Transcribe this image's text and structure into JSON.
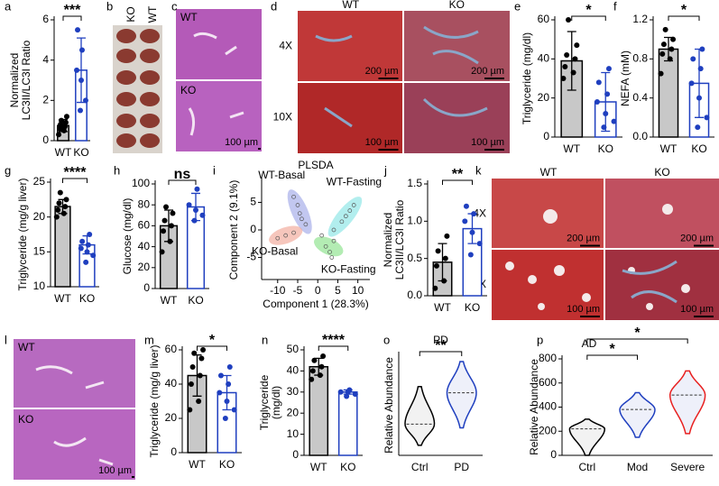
{
  "images": [
    {
      "panel": "b",
      "labels": [
        "KO",
        "WT"
      ]
    },
    {
      "panel": "c",
      "labels": [
        "WT",
        "KO"
      ],
      "scale": "100 µm"
    },
    {
      "panel": "d",
      "cols": [
        "WT",
        "KO"
      ],
      "rows": [
        "4X",
        "10X"
      ],
      "scales": [
        "200 µm",
        "200 µm",
        "100 µm",
        "100 µm"
      ]
    },
    {
      "panel": "k",
      "cols": [
        "WT",
        "KO"
      ],
      "rows": [
        "4X",
        "10X"
      ],
      "scales": [
        "200 µm",
        "200 µm",
        "100 µm",
        "100 µm"
      ]
    },
    {
      "panel": "l",
      "labels": [
        "WT",
        "KO"
      ],
      "scale": "100 µm"
    }
  ],
  "chart_data": [
    {
      "panel": "a",
      "type": "bar",
      "ylabel": [
        "Normalized",
        "LC3II/LC3I Ratio"
      ],
      "categories": [
        "WT",
        "KO"
      ],
      "values": [
        0.75,
        3.5
      ],
      "errors": [
        0.3,
        1.6
      ],
      "points": [
        [
          0.3,
          0.5,
          0.6,
          0.7,
          0.8,
          0.9,
          1.0,
          1.2,
          0.6
        ],
        [
          1.5,
          2.0,
          3.0,
          3.5,
          4.5,
          5.5
        ]
      ],
      "colors": [
        "#c8c8c8",
        "#ffffff"
      ],
      "edge_colors": [
        "#000000",
        "#1f3fbf"
      ],
      "ylim": [
        0,
        6
      ],
      "yticks": [
        0,
        2,
        4,
        6
      ],
      "significance": [
        "***"
      ]
    },
    {
      "panel": "e",
      "type": "bar",
      "ylabel": [
        "Triglyceride (mg/dl)"
      ],
      "categories": [
        "WT",
        "KO"
      ],
      "values": [
        39,
        18
      ],
      "errors": [
        15,
        15
      ],
      "points": [
        [
          30,
          33,
          36,
          40,
          42,
          47,
          60
        ],
        [
          5,
          8,
          12,
          18,
          22,
          28,
          35
        ]
      ],
      "colors": [
        "#c8c8c8",
        "#ffffff"
      ],
      "edge_colors": [
        "#000000",
        "#1f3fbf"
      ],
      "ylim": [
        0,
        60
      ],
      "yticks": [
        0,
        20,
        40,
        60
      ],
      "significance": [
        "*"
      ]
    },
    {
      "panel": "f",
      "type": "bar",
      "ylabel": [
        "NEFA (mM)"
      ],
      "categories": [
        "WT",
        "KO"
      ],
      "values": [
        0.9,
        0.55
      ],
      "errors": [
        0.12,
        0.35
      ],
      "points": [
        [
          0.65,
          0.8,
          0.85,
          0.9,
          0.95,
          1.0,
          1.1
        ],
        [
          0.1,
          0.2,
          0.4,
          0.55,
          0.7,
          0.8,
          0.9
        ]
      ],
      "colors": [
        "#c8c8c8",
        "#ffffff"
      ],
      "edge_colors": [
        "#000000",
        "#1f3fbf"
      ],
      "ylim": [
        0,
        1.2
      ],
      "yticks": [
        {
          "value": 0,
          "label": "0.0"
        },
        0.4,
        0.8,
        1.2
      ],
      "significance": [
        "*"
      ]
    },
    {
      "panel": "g",
      "type": "bar",
      "ylabel": [
        "Triglyceride (mg/g liver)"
      ],
      "categories": [
        "WT",
        "KO"
      ],
      "values": [
        21.5,
        16
      ],
      "errors": [
        1,
        1.3
      ],
      "points": [
        [
          20,
          20.5,
          21,
          21.5,
          22,
          22.5,
          23.5
        ],
        [
          13.5,
          14.5,
          15,
          15.5,
          16,
          16.5,
          17.5
        ]
      ],
      "colors": [
        "#c8c8c8",
        "#ffffff"
      ],
      "edge_colors": [
        "#000000",
        "#1f3fbf"
      ],
      "ylim": [
        10,
        25
      ],
      "yticks": [
        10,
        15,
        20,
        25
      ],
      "significance": [
        "****"
      ]
    },
    {
      "panel": "h",
      "type": "bar",
      "ylabel": [
        "Glucose (mg/dl)"
      ],
      "categories": [
        "WT",
        "KO"
      ],
      "values": [
        60,
        78
      ],
      "errors": [
        15,
        13
      ],
      "points": [
        [
          35,
          45,
          55,
          60,
          65,
          72,
          78
        ],
        [
          65,
          70,
          75,
          80,
          95
        ]
      ],
      "colors": [
        "#c8c8c8",
        "#ffffff"
      ],
      "edge_colors": [
        "#000000",
        "#1f3fbf"
      ],
      "ylim": [
        0,
        100
      ],
      "yticks": [
        0,
        20,
        40,
        60,
        80,
        100
      ],
      "significance": [
        "ns"
      ]
    },
    {
      "panel": "i",
      "type": "scatter",
      "title": "PLSDA",
      "xlabel": "Component 1 (28.3%)",
      "ylabel": [
        "Component 2 (9.1%)"
      ],
      "xlim": [
        -14,
        13
      ],
      "ylim": [
        -9,
        9
      ],
      "xticks": [
        -10,
        -5,
        0,
        5,
        10
      ],
      "yticks": [
        -5,
        0,
        5
      ],
      "series": [
        {
          "name": "WT-Basal",
          "color": "#9aa2e6",
          "x": [
            -6,
            -5,
            -4.5,
            -4,
            -3
          ],
          "y": [
            6,
            4.5,
            3,
            2,
            1
          ]
        },
        {
          "name": "WT-Fasting",
          "color": "#7fe3e3",
          "x": [
            4,
            6,
            7,
            8,
            9
          ],
          "y": [
            0,
            1.5,
            2.5,
            3.5,
            4.5
          ]
        },
        {
          "name": "KO-Basal",
          "color": "#f0a090",
          "x": [
            -10,
            -8,
            -6
          ],
          "y": [
            -1.5,
            -1,
            -0.5
          ]
        },
        {
          "name": "KO-Fasting",
          "color": "#80e080",
          "x": [
            1,
            2,
            3,
            3.5,
            4
          ],
          "y": [
            -1,
            -3,
            -4,
            -5,
            -2
          ]
        }
      ]
    },
    {
      "panel": "j",
      "type": "bar",
      "ylabel": [
        "Normalized",
        "LC3II/LC3I Ratio"
      ],
      "categories": [
        "WT",
        "KO"
      ],
      "values": [
        0.45,
        0.9
      ],
      "errors": [
        0.25,
        0.2
      ],
      "points": [
        [
          0.1,
          0.2,
          0.4,
          0.5,
          0.6,
          0.8
        ],
        [
          0.55,
          0.7,
          0.85,
          1.0,
          1.1,
          1.2
        ]
      ],
      "colors": [
        "#c8c8c8",
        "#ffffff"
      ],
      "edge_colors": [
        "#000000",
        "#1f3fbf"
      ],
      "ylim": [
        0,
        1.5
      ],
      "yticks": [
        {
          "value": 0,
          "label": "0.0"
        },
        0.5,
        {
          "value": 1,
          "label": "1.0"
        },
        1.5
      ],
      "significance": [
        "**"
      ]
    },
    {
      "panel": "m",
      "type": "bar",
      "ylabel": [
        "Triglyceride (mg/g liver)"
      ],
      "categories": [
        "WT",
        "KO"
      ],
      "values": [
        45,
        35
      ],
      "errors": [
        12,
        10
      ],
      "points": [
        [
          25,
          30,
          40,
          45,
          50,
          55,
          58,
          60
        ],
        [
          20,
          25,
          30,
          35,
          40,
          45,
          50
        ]
      ],
      "colors": [
        "#c8c8c8",
        "#ffffff"
      ],
      "edge_colors": [
        "#000000",
        "#1f3fbf"
      ],
      "ylim": [
        0,
        60
      ],
      "yticks": [
        0,
        20,
        40,
        60
      ],
      "significance": [
        "*"
      ]
    },
    {
      "panel": "n",
      "type": "bar",
      "ylabel": [
        "Triglyceride",
        "(mg/dl)"
      ],
      "categories": [
        "WT",
        "KO"
      ],
      "values": [
        42,
        30
      ],
      "errors": [
        4,
        1
      ],
      "points": [
        [
          36,
          38,
          40,
          42,
          45,
          47
        ],
        [
          28,
          29,
          30,
          30,
          31
        ]
      ],
      "colors": [
        "#c8c8c8",
        "#ffffff"
      ],
      "edge_colors": [
        "#000000",
        "#1f3fbf"
      ],
      "ylim": [
        0,
        50
      ],
      "yticks": [
        0,
        10,
        20,
        30,
        40,
        50
      ],
      "significance": [
        "****"
      ]
    },
    {
      "panel": "o",
      "type": "violin",
      "title": "PD",
      "ylabel": [
        "Relative Abundance"
      ],
      "categories": [
        "Ctrl",
        "PD"
      ],
      "values": [
        25,
        50
      ],
      "ranges": [
        [
          8,
          55
        ],
        [
          22,
          75
        ]
      ],
      "colors": [
        "#000000",
        "#1f3fbf"
      ],
      "ylim": [
        0,
        80
      ],
      "significance": [
        "**"
      ]
    },
    {
      "panel": "p",
      "type": "violin",
      "title": "AD",
      "ylabel": [
        "Relative Abundance"
      ],
      "categories": [
        "Ctrl",
        "Mod",
        "Severe"
      ],
      "values": [
        220,
        380,
        500
      ],
      "ranges": [
        [
          0,
          300
        ],
        [
          150,
          520
        ],
        [
          180,
          700
        ]
      ],
      "colors": [
        "#000000",
        "#1f3fbf",
        "#e82020"
      ],
      "ylim": [
        0,
        800
      ],
      "yticks": [
        0,
        200,
        400,
        600,
        800
      ],
      "significance": [
        "*",
        "*"
      ]
    }
  ]
}
